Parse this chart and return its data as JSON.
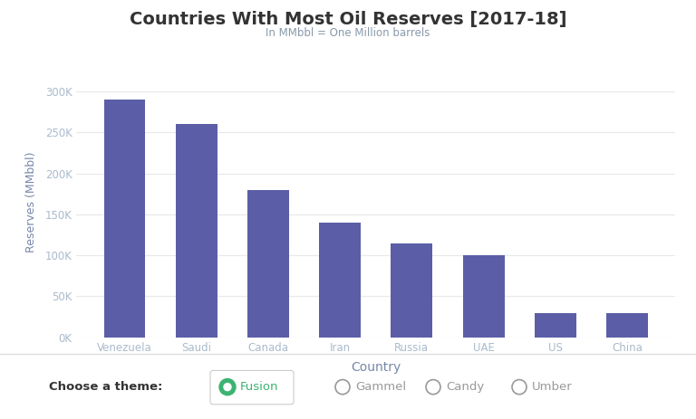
{
  "title": "Countries With Most Oil Reserves [2017-18]",
  "subtitle": "In MMbbl = One Million barrels",
  "xlabel": "Country",
  "ylabel": "Reserves (MMbbl)",
  "categories": [
    "Venezuela",
    "Saudi",
    "Canada",
    "Iran",
    "Russia",
    "UAE",
    "US",
    "China"
  ],
  "values": [
    290000,
    260000,
    180000,
    140000,
    115000,
    100000,
    30000,
    30000
  ],
  "bar_color": "#5B5EA6",
  "title_fontsize": 14,
  "subtitle_fontsize": 8.5,
  "xlabel_fontsize": 10,
  "ylabel_fontsize": 9,
  "tick_fontsize": 8.5,
  "yticks": [
    0,
    50000,
    100000,
    150000,
    200000,
    250000,
    300000
  ],
  "ytick_labels": [
    "0K",
    "50K",
    "100K",
    "150K",
    "200K",
    "250K",
    "300K"
  ],
  "ylim": [
    0,
    330000
  ],
  "bg_color": "#ffffff",
  "plot_bg_color": "#ffffff",
  "grid_color": "#e8e8e8",
  "title_color": "#333333",
  "subtitle_color": "#8899aa",
  "label_color": "#7788aa",
  "tick_color": "#aabbcc",
  "theme_options": [
    "Fusion",
    "Gammel",
    "Candy",
    "Umber"
  ],
  "theme_active": "Fusion",
  "theme_active_color": "#3cb371",
  "theme_inactive_color": "#999999"
}
